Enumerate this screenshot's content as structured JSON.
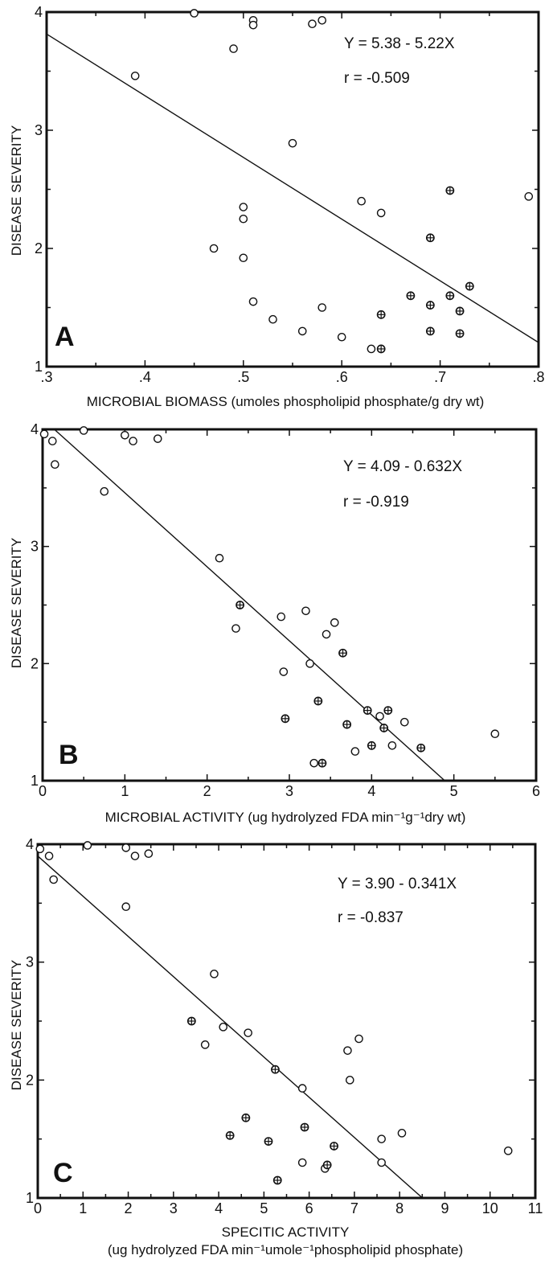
{
  "figure": {
    "panels": [
      {
        "letter": "A",
        "xlabel": "MICROBIAL BIOMASS (umoles phospholipid phosphate/g dry wt)",
        "xlabel2": "",
        "ylabel": "DISEASE SEVERITY",
        "equation": "Y = 5.38 - 5.22X",
        "r_text": "r = -0.509"
      },
      {
        "letter": "B",
        "xlabel": "MICROBIAL ACTIVITY (ug hydrolyzed FDA min⁻¹g⁻¹dry wt)",
        "xlabel2": "",
        "ylabel": "DISEASE SEVERITY",
        "equation": "Y = 4.09 - 0.632X",
        "r_text": "r = -0.919"
      },
      {
        "letter": "C",
        "xlabel": "SPECITIC ACTIVITY",
        "xlabel2": "(ug hydrolyzed FDA min⁻¹umole⁻¹phospholipid phosphate)",
        "ylabel": "DISEASE SEVERITY",
        "equation": "Y = 3.90 - 0.341X",
        "r_text": "r = -0.837"
      }
    ]
  },
  "chart_data": [
    {
      "type": "scatter",
      "panel": "A",
      "title": "",
      "xlabel": "MICROBIAL BIOMASS (umoles phospholipid phosphate/g dry wt)",
      "ylabel": "DISEASE SEVERITY",
      "xlim": [
        0.3,
        0.8
      ],
      "ylim": [
        1,
        4
      ],
      "xticks": [
        ".3",
        ".4",
        ".5",
        ".6",
        ".7",
        ".8"
      ],
      "yticks": [
        "1",
        "2",
        "3",
        "4"
      ],
      "grid": false,
      "regression": {
        "intercept": 5.38,
        "slope": -5.22,
        "r": -0.509
      },
      "series": [
        {
          "marker": "open-circle",
          "points": [
            [
              0.39,
              3.46
            ],
            [
              0.45,
              3.99
            ],
            [
              0.49,
              3.69
            ],
            [
              0.51,
              3.93
            ],
            [
              0.51,
              3.89
            ],
            [
              0.57,
              3.9
            ],
            [
              0.58,
              3.93
            ],
            [
              0.55,
              2.89
            ],
            [
              0.5,
              2.35
            ],
            [
              0.5,
              2.25
            ],
            [
              0.47,
              2.0
            ],
            [
              0.5,
              1.92
            ],
            [
              0.51,
              1.55
            ],
            [
              0.53,
              1.4
            ],
            [
              0.56,
              1.3
            ],
            [
              0.58,
              1.5
            ],
            [
              0.6,
              1.25
            ],
            [
              0.62,
              2.4
            ],
            [
              0.63,
              1.15
            ],
            [
              0.64,
              2.3
            ],
            [
              0.79,
              2.44
            ]
          ]
        },
        {
          "marker": "crossed-circle",
          "points": [
            [
              0.64,
              1.15
            ],
            [
              0.64,
              1.44
            ],
            [
              0.67,
              1.6
            ],
            [
              0.69,
              1.52
            ],
            [
              0.69,
              1.3
            ],
            [
              0.69,
              2.09
            ],
            [
              0.71,
              2.49
            ],
            [
              0.71,
              1.6
            ],
            [
              0.72,
              1.47
            ],
            [
              0.72,
              1.28
            ],
            [
              0.73,
              1.68
            ]
          ]
        }
      ]
    },
    {
      "type": "scatter",
      "panel": "B",
      "title": "",
      "xlabel": "MICROBIAL ACTIVITY (ug hydrolyzed FDA min⁻¹g⁻¹dry wt)",
      "ylabel": "DISEASE SEVERITY",
      "xlim": [
        0,
        6
      ],
      "ylim": [
        1,
        4
      ],
      "xticks": [
        "0",
        "1",
        "2",
        "3",
        "4",
        "5",
        "6"
      ],
      "yticks": [
        "1",
        "2",
        "3",
        "4"
      ],
      "grid": false,
      "regression": {
        "intercept": 4.09,
        "slope": -0.632,
        "r": -0.919
      },
      "series": [
        {
          "marker": "open-circle",
          "points": [
            [
              0.02,
              3.96
            ],
            [
              0.12,
              3.9
            ],
            [
              0.15,
              3.7
            ],
            [
              0.5,
              3.99
            ],
            [
              0.75,
              3.47
            ],
            [
              1.0,
              3.95
            ],
            [
              1.1,
              3.9
            ],
            [
              1.4,
              3.92
            ],
            [
              2.15,
              2.9
            ],
            [
              2.35,
              2.3
            ],
            [
              2.9,
              2.4
            ],
            [
              2.93,
              1.93
            ],
            [
              3.2,
              2.45
            ],
            [
              3.25,
              2.0
            ],
            [
              3.3,
              1.15
            ],
            [
              3.45,
              2.25
            ],
            [
              3.55,
              2.35
            ],
            [
              3.8,
              1.25
            ],
            [
              4.1,
              1.55
            ],
            [
              4.25,
              1.3
            ],
            [
              4.4,
              1.5
            ],
            [
              5.5,
              1.4
            ]
          ]
        },
        {
          "marker": "crossed-circle",
          "points": [
            [
              2.4,
              2.5
            ],
            [
              2.95,
              1.53
            ],
            [
              3.35,
              1.68
            ],
            [
              3.4,
              1.15
            ],
            [
              3.65,
              2.09
            ],
            [
              3.7,
              1.48
            ],
            [
              3.95,
              1.6
            ],
            [
              4.0,
              1.3
            ],
            [
              4.15,
              1.45
            ],
            [
              4.2,
              1.6
            ],
            [
              4.6,
              1.28
            ]
          ]
        }
      ]
    },
    {
      "type": "scatter",
      "panel": "C",
      "title": "",
      "xlabel": "SPECITIC ACTIVITY (ug hydrolyzed FDA min⁻¹umole⁻¹phospholipid phosphate)",
      "ylabel": "DISEASE SEVERITY",
      "xlim": [
        0,
        11
      ],
      "ylim": [
        1,
        4
      ],
      "xticks": [
        "0",
        "1",
        "2",
        "3",
        "4",
        "5",
        "6",
        "7",
        "8",
        "9",
        "10",
        "11"
      ],
      "yticks": [
        "1",
        "2",
        "3",
        "4"
      ],
      "grid": false,
      "regression": {
        "intercept": 3.9,
        "slope": -0.341,
        "r": -0.837
      },
      "series": [
        {
          "marker": "open-circle",
          "points": [
            [
              0.05,
              3.96
            ],
            [
              0.25,
              3.9
            ],
            [
              0.35,
              3.7
            ],
            [
              1.1,
              3.99
            ],
            [
              1.95,
              3.97
            ],
            [
              1.95,
              3.47
            ],
            [
              2.15,
              3.9
            ],
            [
              2.45,
              3.92
            ],
            [
              3.7,
              2.3
            ],
            [
              3.9,
              2.9
            ],
            [
              4.1,
              2.45
            ],
            [
              4.65,
              2.4
            ],
            [
              5.85,
              1.93
            ],
            [
              5.85,
              1.3
            ],
            [
              6.35,
              1.25
            ],
            [
              6.85,
              2.25
            ],
            [
              6.9,
              2.0
            ],
            [
              7.1,
              2.35
            ],
            [
              7.6,
              1.5
            ],
            [
              7.6,
              1.3
            ],
            [
              8.05,
              1.55
            ],
            [
              10.4,
              1.4
            ]
          ]
        },
        {
          "marker": "crossed-circle",
          "points": [
            [
              3.4,
              2.5
            ],
            [
              4.25,
              1.53
            ],
            [
              4.6,
              1.68
            ],
            [
              5.1,
              1.48
            ],
            [
              5.25,
              2.09
            ],
            [
              5.3,
              1.15
            ],
            [
              5.9,
              1.6
            ],
            [
              6.4,
              1.28
            ],
            [
              6.55,
              1.44
            ]
          ]
        }
      ]
    }
  ]
}
